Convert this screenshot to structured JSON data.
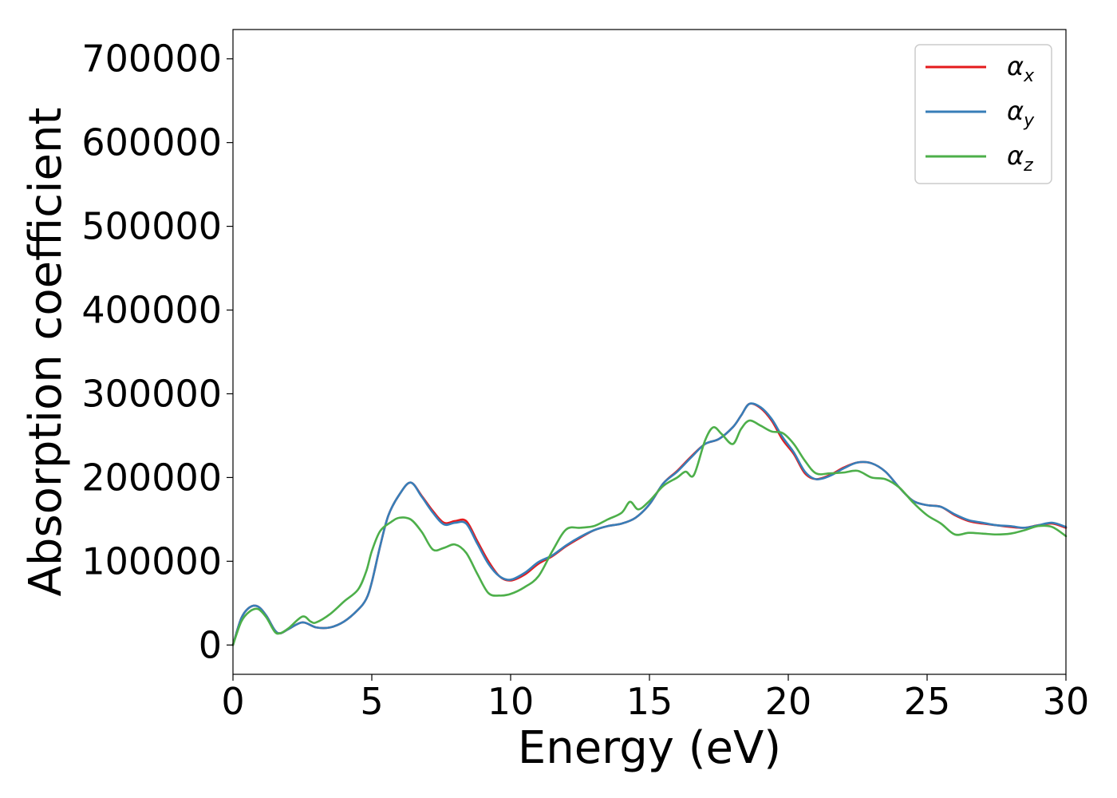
{
  "chart_data": {
    "type": "line",
    "title": "",
    "xlabel": "Energy (eV)",
    "ylabel": "Absorption coefficient",
    "xlim": [
      0,
      30
    ],
    "ylim": [
      -35000,
      735000
    ],
    "xticks": [
      0,
      5,
      10,
      15,
      20,
      25,
      30
    ],
    "xtick_labels": [
      "0",
      "5",
      "10",
      "15",
      "20",
      "25",
      "30"
    ],
    "yticks": [
      0,
      100000,
      200000,
      300000,
      400000,
      500000,
      600000,
      700000
    ],
    "ytick_labels": [
      "0",
      "100000",
      "200000",
      "300000",
      "400000",
      "500000",
      "600000",
      "700000"
    ],
    "grid": false,
    "legend_position": "top-right",
    "series": [
      {
        "name": "α",
        "subscript": "x",
        "color": "#e41a1c",
        "x": [
          0,
          0.3,
          0.6,
          0.9,
          1.2,
          1.5,
          1.7,
          2.0,
          2.5,
          3.0,
          3.5,
          4.0,
          4.5,
          4.8,
          5.0,
          5.3,
          5.6,
          6.0,
          6.4,
          6.8,
          7.2,
          7.6,
          8.0,
          8.4,
          8.8,
          9.2,
          9.6,
          10.0,
          10.5,
          11.0,
          11.5,
          12.0,
          12.5,
          13.0,
          13.5,
          14.0,
          14.5,
          15.0,
          15.5,
          16.0,
          16.5,
          17.0,
          17.5,
          18.0,
          18.3,
          18.6,
          19.0,
          19.4,
          19.8,
          20.2,
          20.6,
          21.0,
          21.5,
          22.0,
          22.5,
          23.0,
          23.5,
          24.0,
          24.5,
          25.0,
          25.5,
          26.0,
          26.5,
          27.0,
          27.5,
          28.0,
          28.5,
          29.0,
          29.5,
          30.0
        ],
        "y": [
          0,
          32000,
          45000,
          46000,
          35000,
          18000,
          14000,
          19000,
          27000,
          21000,
          21000,
          28000,
          42000,
          55000,
          75000,
          118000,
          155000,
          180000,
          194000,
          178000,
          160000,
          146000,
          148000,
          148000,
          124000,
          100000,
          82000,
          77000,
          84000,
          97000,
          106000,
          118000,
          128000,
          137000,
          142000,
          145000,
          152000,
          168000,
          193000,
          208000,
          225000,
          240000,
          246000,
          260000,
          274000,
          288000,
          283000,
          268000,
          245000,
          228000,
          205000,
          198000,
          203000,
          212000,
          218000,
          217000,
          207000,
          188000,
          172000,
          167000,
          165000,
          155000,
          148000,
          145000,
          143000,
          141000,
          140000,
          143000,
          145000,
          140000
        ]
      },
      {
        "name": "α",
        "subscript": "y",
        "color": "#377eb8",
        "x": [
          0,
          0.3,
          0.6,
          0.9,
          1.2,
          1.5,
          1.7,
          2.0,
          2.5,
          3.0,
          3.5,
          4.0,
          4.5,
          4.8,
          5.0,
          5.3,
          5.6,
          6.0,
          6.4,
          6.8,
          7.2,
          7.6,
          8.0,
          8.4,
          8.8,
          9.2,
          9.6,
          10.0,
          10.5,
          11.0,
          11.5,
          12.0,
          12.5,
          13.0,
          13.5,
          14.0,
          14.5,
          15.0,
          15.5,
          16.0,
          16.5,
          17.0,
          17.5,
          18.0,
          18.3,
          18.6,
          19.0,
          19.4,
          19.8,
          20.2,
          20.6,
          21.0,
          21.5,
          22.0,
          22.5,
          23.0,
          23.5,
          24.0,
          24.5,
          25.0,
          25.5,
          26.0,
          26.5,
          27.0,
          27.5,
          28.0,
          28.5,
          29.0,
          29.5,
          30.0
        ],
        "y": [
          0,
          32000,
          45000,
          46000,
          35000,
          18000,
          14000,
          19000,
          27000,
          21000,
          21000,
          28000,
          42000,
          55000,
          75000,
          118000,
          155000,
          180000,
          194000,
          177000,
          158000,
          144000,
          146000,
          145000,
          121000,
          97000,
          82000,
          78000,
          86000,
          99000,
          107000,
          119000,
          129000,
          137000,
          142000,
          145000,
          152000,
          168000,
          193000,
          207000,
          224000,
          240000,
          246000,
          260000,
          274000,
          288000,
          284000,
          270000,
          248000,
          230000,
          207000,
          198000,
          202000,
          211000,
          218000,
          217000,
          207000,
          188000,
          172000,
          167000,
          165000,
          156000,
          149000,
          146000,
          143000,
          142000,
          140000,
          143000,
          146000,
          141000
        ]
      },
      {
        "name": "α",
        "subscript": "z",
        "color": "#4daf4a",
        "x": [
          0,
          0.3,
          0.6,
          0.9,
          1.2,
          1.5,
          1.7,
          2.0,
          2.5,
          2.8,
          3.0,
          3.5,
          4.0,
          4.5,
          4.8,
          5.0,
          5.3,
          5.7,
          6.0,
          6.4,
          6.8,
          7.2,
          7.6,
          8.0,
          8.4,
          8.8,
          9.2,
          9.6,
          10.0,
          10.5,
          11.0,
          11.5,
          12.0,
          12.5,
          13.0,
          13.5,
          14.0,
          14.3,
          14.6,
          15.0,
          15.5,
          16.0,
          16.3,
          16.6,
          17.0,
          17.3,
          17.6,
          18.0,
          18.3,
          18.6,
          19.0,
          19.4,
          19.8,
          20.2,
          20.6,
          21.0,
          21.5,
          22.0,
          22.5,
          23.0,
          23.5,
          24.0,
          24.5,
          25.0,
          25.5,
          26.0,
          26.5,
          27.0,
          27.5,
          28.0,
          28.5,
          29.0,
          29.5,
          30.0
        ],
        "y": [
          0,
          28000,
          40000,
          43000,
          33000,
          16000,
          14000,
          20000,
          34000,
          28000,
          27000,
          37000,
          52000,
          66000,
          88000,
          112000,
          136000,
          147000,
          152000,
          150000,
          135000,
          114000,
          116000,
          120000,
          110000,
          85000,
          62000,
          59000,
          61000,
          69000,
          82000,
          112000,
          138000,
          140000,
          142000,
          150000,
          158000,
          171000,
          162000,
          172000,
          190000,
          200000,
          207000,
          203000,
          244000,
          260000,
          252000,
          240000,
          258000,
          268000,
          262000,
          255000,
          253000,
          240000,
          220000,
          205000,
          205000,
          206000,
          208000,
          200000,
          198000,
          188000,
          170000,
          155000,
          145000,
          132000,
          134000,
          133000,
          132000,
          133000,
          137000,
          142000,
          141000,
          130000
        ]
      }
    ]
  }
}
